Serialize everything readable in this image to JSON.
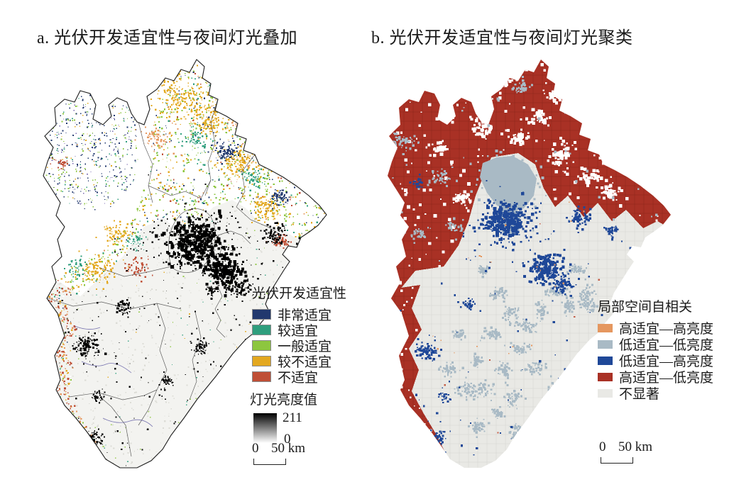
{
  "panels": {
    "a": {
      "title": "a. 光伏开发适宜性与夜间灯光叠加"
    },
    "b": {
      "title": "b. 光伏开发适宜性与夜间灯光聚类"
    }
  },
  "legend_a": {
    "title": "光伏开发适宜性",
    "items": [
      {
        "label": "非常适宜",
        "color": "#21386e"
      },
      {
        "label": "较适宜",
        "color": "#2f9e7d"
      },
      {
        "label": "一般适宜",
        "color": "#8dc63f"
      },
      {
        "label": "较不适宜",
        "color": "#e3a820"
      },
      {
        "label": "不适宜",
        "color": "#bf4f36"
      }
    ],
    "brightness": {
      "title": "灯光亮度值",
      "max": "211",
      "min": "0"
    },
    "scalebar": {
      "zero": "0",
      "distance": "50 km"
    }
  },
  "legend_b": {
    "title": "局部空间自相关",
    "items": [
      {
        "label": "高适宜—高亮度",
        "color": "#e5975f"
      },
      {
        "label": "低适宜—低亮度",
        "color": "#a9bac5"
      },
      {
        "label": "低适宜—高亮度",
        "color": "#1f4898"
      },
      {
        "label": "高适宜—低亮度",
        "color": "#a93125"
      },
      {
        "label": "不显著",
        "color": "#e9e9e5"
      }
    ],
    "scalebar": {
      "zero": "0",
      "distance": "50 km"
    }
  },
  "palette": {
    "navy": "#21386e",
    "teal": "#2f9e7d",
    "green": "#8dc63f",
    "yellow": "#e3a820",
    "red": "#bf4f36",
    "hh_orange": "#e5975f",
    "ll_grayblue": "#a9bac5",
    "lh_blue": "#1f4898",
    "hl_darkred": "#a93125",
    "not_significant": "#e9e9e5",
    "lights_high": "#000000",
    "lights_low": "#ffffff",
    "outline": "#1c1c1c"
  }
}
